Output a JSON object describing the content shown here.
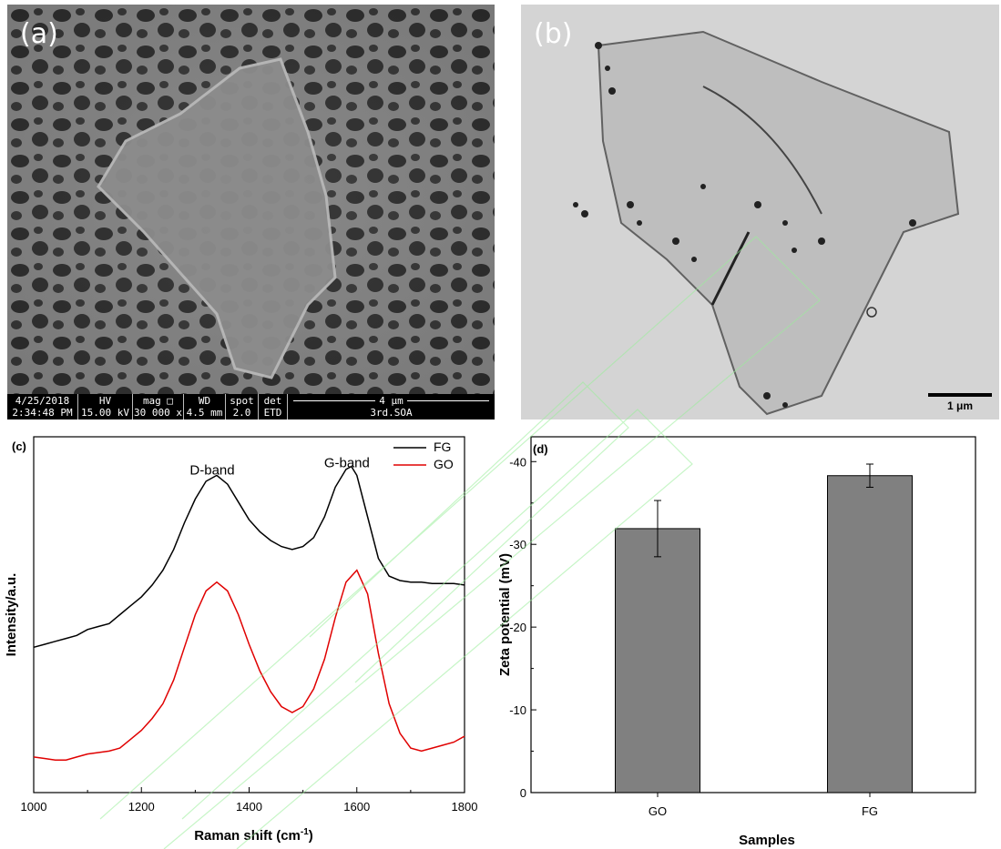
{
  "panel_a": {
    "label": "(a)",
    "infobar": {
      "date": "4/25/2018",
      "time": "2:34:48 PM",
      "hv_label": "HV",
      "hv": "15.00 kV",
      "mag_label": "mag □",
      "mag": "30 000 x",
      "wd_label": "WD",
      "wd": "4.5 mm",
      "spot_label": "spot",
      "spot": "2.0",
      "det_label": "det",
      "det": "ETD",
      "scale": "4 μm",
      "sample": "3rd.SOA"
    }
  },
  "panel_b": {
    "label": "(b)",
    "scale": "1 μm"
  },
  "chart_data": [
    {
      "type": "line",
      "panel_label": "(c)",
      "xlabel_main": "Raman shift (cm",
      "xlabel_sup": "-1",
      "xlabel_end": ")",
      "ylabel": "Intensity/a.u.",
      "xlim": [
        1000,
        1800
      ],
      "xticks": [
        "1000",
        "1200",
        "1400",
        "1600",
        "1800"
      ],
      "legend_position": "top-right",
      "annotations": [
        {
          "text": "D-band",
          "x": 1340
        },
        {
          "text": "G-band",
          "x": 1590
        }
      ],
      "series": [
        {
          "name": "FG",
          "color": "#000000",
          "x": [
            1000,
            1020,
            1040,
            1060,
            1080,
            1100,
            1120,
            1140,
            1160,
            1180,
            1200,
            1220,
            1240,
            1260,
            1280,
            1300,
            1320,
            1340,
            1360,
            1380,
            1400,
            1420,
            1440,
            1460,
            1480,
            1500,
            1520,
            1540,
            1560,
            1580,
            1590,
            1600,
            1620,
            1640,
            1660,
            1680,
            1700,
            1720,
            1740,
            1760,
            1780,
            1800
          ],
          "y": [
            0.44,
            0.45,
            0.46,
            0.47,
            0.48,
            0.5,
            0.51,
            0.52,
            0.55,
            0.58,
            0.61,
            0.65,
            0.7,
            0.77,
            0.86,
            0.94,
            1.0,
            1.02,
            0.99,
            0.93,
            0.87,
            0.83,
            0.8,
            0.78,
            0.77,
            0.78,
            0.81,
            0.88,
            0.98,
            1.04,
            1.05,
            1.02,
            0.88,
            0.74,
            0.68,
            0.665,
            0.66,
            0.66,
            0.655,
            0.655,
            0.655,
            0.65
          ]
        },
        {
          "name": "GO",
          "color": "#e00000",
          "x": [
            1000,
            1020,
            1040,
            1060,
            1080,
            1100,
            1120,
            1140,
            1160,
            1180,
            1200,
            1220,
            1240,
            1260,
            1280,
            1300,
            1320,
            1340,
            1360,
            1380,
            1400,
            1420,
            1440,
            1460,
            1480,
            1500,
            1520,
            1540,
            1560,
            1580,
            1600,
            1620,
            1640,
            1660,
            1680,
            1700,
            1720,
            1740,
            1760,
            1780,
            1800
          ],
          "y": [
            0.07,
            0.065,
            0.06,
            0.06,
            0.07,
            0.08,
            0.085,
            0.09,
            0.1,
            0.13,
            0.16,
            0.2,
            0.25,
            0.33,
            0.44,
            0.55,
            0.63,
            0.66,
            0.63,
            0.55,
            0.45,
            0.36,
            0.29,
            0.24,
            0.22,
            0.24,
            0.3,
            0.4,
            0.54,
            0.66,
            0.7,
            0.62,
            0.42,
            0.25,
            0.15,
            0.1,
            0.09,
            0.1,
            0.11,
            0.12,
            0.14
          ]
        }
      ]
    },
    {
      "type": "bar",
      "panel_label": "(d)",
      "xlabel": "Samples",
      "ylabel": "Zeta potential (mV)",
      "categories": [
        "GO",
        "FG"
      ],
      "values": [
        -31.9,
        -38.3
      ],
      "errors": [
        3.4,
        1.4
      ],
      "ylim": [
        0,
        -43
      ],
      "yticks": [
        0,
        -10,
        -20,
        -30,
        -40
      ],
      "ytick_labels": [
        "0",
        "-10",
        "-20",
        "-30",
        "-40"
      ],
      "bar_color": "#808080"
    }
  ]
}
